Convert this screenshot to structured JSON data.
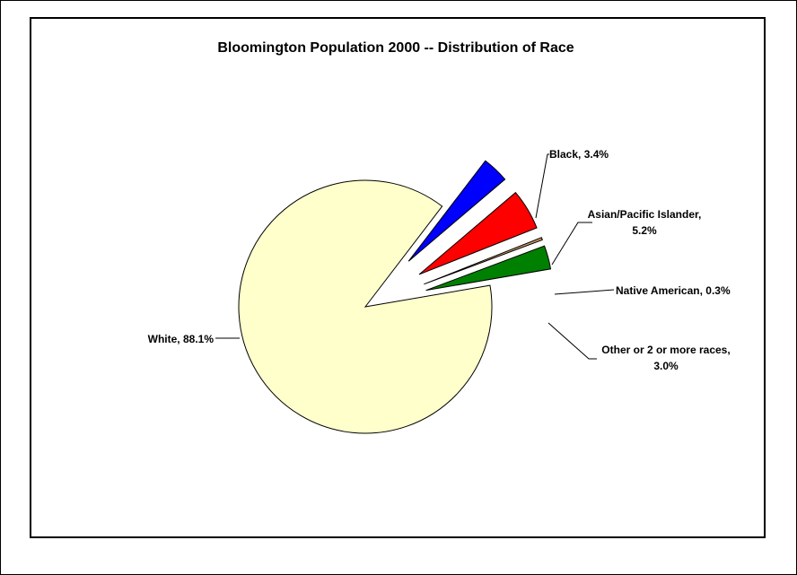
{
  "chart_data": {
    "type": "pie",
    "title": "Bloomington Population 2000 -- Distribution of Race",
    "slices": [
      {
        "key": "white",
        "label": "White, 88.1%",
        "value": 88.1,
        "color": "#FFFFCC",
        "exploded": false
      },
      {
        "key": "black",
        "label": "Black, 3.4%",
        "value": 3.4,
        "color": "#0000FF",
        "exploded": true
      },
      {
        "key": "asian",
        "label": "Asian/Pacific Islander, 5.2%",
        "label_lines": [
          "Asian/Pacific Islander,",
          "5.2%"
        ],
        "value": 5.2,
        "color": "#FF0000",
        "exploded": true
      },
      {
        "key": "native",
        "label": "Native American, 0.3%",
        "value": 0.3,
        "color": "#CC9966",
        "exploded": true
      },
      {
        "key": "other",
        "label": "Other or 2 or more races, 3.0%",
        "label_lines": [
          "Other or 2 or more races,",
          "3.0%"
        ],
        "value": 3.0,
        "color": "#008000",
        "exploded": true
      }
    ],
    "legend": "none"
  }
}
